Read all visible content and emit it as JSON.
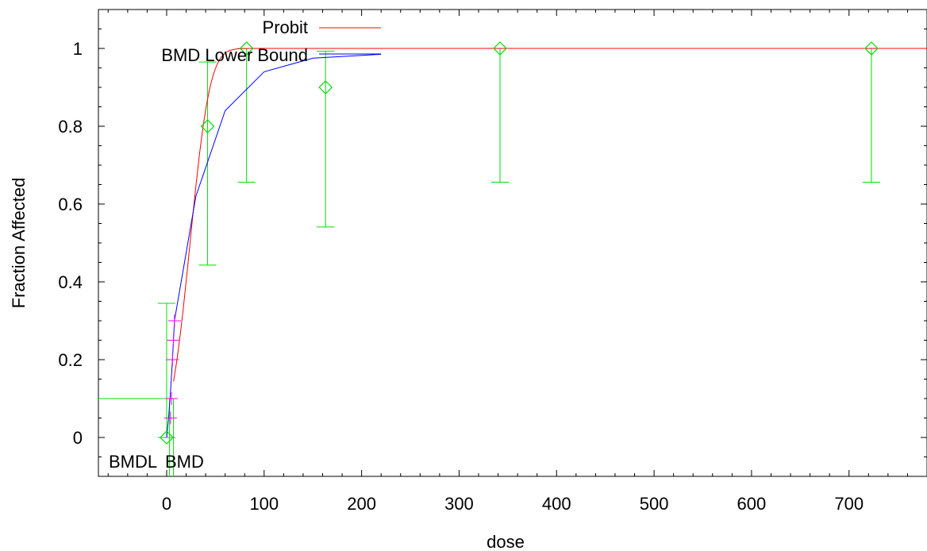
{
  "chart_data": {
    "type": "scatter",
    "title": "",
    "xlabel": "dose",
    "ylabel": "Fraction Affected",
    "xlim": [
      -70,
      780
    ],
    "ylim": [
      -0.1,
      1.1
    ],
    "xticks": [
      0,
      100,
      200,
      300,
      400,
      500,
      600,
      700
    ],
    "xtick_labels": [
      "0",
      "100",
      "200",
      "300",
      "400",
      "500",
      "600",
      "700"
    ],
    "yticks": [
      0,
      0.2,
      0.4,
      0.6,
      0.8,
      1
    ],
    "ytick_labels": [
      "0",
      "0.2",
      "0.4",
      "0.6",
      "0.8",
      "1"
    ],
    "grid": false,
    "legend_position": "top-center",
    "legend": [
      {
        "label": "Probit",
        "color": "#ff0000"
      },
      {
        "label": "BMD Lower Bound",
        "color": "#0000ff"
      }
    ],
    "observed": {
      "marker": "diamond",
      "color": "#00dd00",
      "x": [
        0,
        42,
        82,
        163,
        342,
        723
      ],
      "y": [
        0.0,
        0.8,
        1.0,
        0.9,
        1.0,
        1.0
      ],
      "lower": [
        0.0,
        0.443,
        0.656,
        0.541,
        0.656,
        0.656
      ],
      "upper": [
        0.345,
        0.965,
        1.0,
        0.993,
        1.0,
        1.0
      ]
    },
    "probit_curve": {
      "name": "Probit",
      "color": "#ff0000",
      "probit_intercept": -1.5,
      "probit_slope": 0.0625,
      "x_start": 7,
      "x_end": 780
    },
    "bmdl_curve": {
      "name": "BMD Lower Bound",
      "color": "#0000ff",
      "x": [
        0,
        2,
        4,
        6,
        8,
        30,
        60,
        100,
        150,
        220
      ],
      "y": [
        0.0,
        0.05,
        0.12,
        0.2,
        0.3,
        0.62,
        0.84,
        0.94,
        0.975,
        0.985
      ]
    },
    "bmr_markers": {
      "color": "#ff00ff",
      "x": [
        4,
        5,
        6,
        7,
        8
      ],
      "y": [
        0.05,
        0.1,
        0.2,
        0.25,
        0.3
      ]
    },
    "bmr_line": {
      "color": "#00dd00",
      "y": 0.1,
      "bmdl": 3,
      "bmd": 7
    },
    "marker_labels": {
      "bmdl": "BMDL",
      "bmd": "BMD"
    }
  }
}
